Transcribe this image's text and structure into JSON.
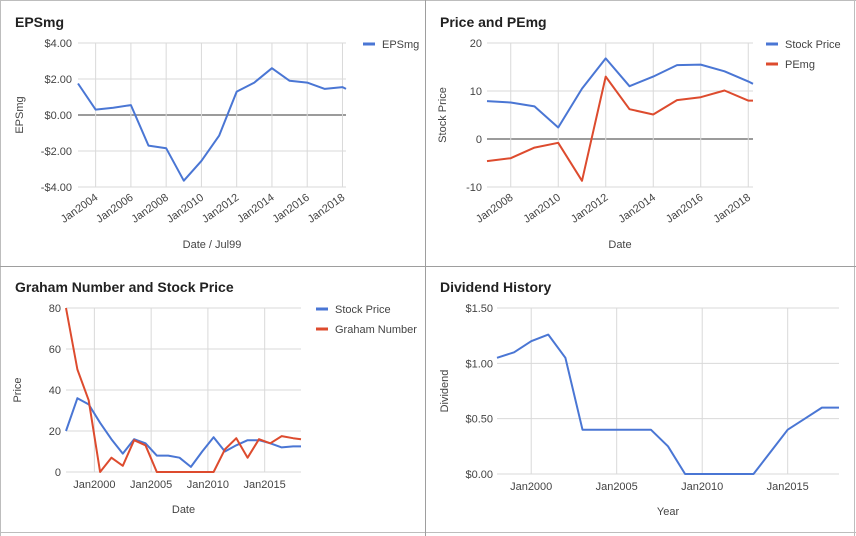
{
  "chart_data": [
    {
      "type": "line",
      "title": "EPSmg",
      "xlabel": "Date / Jul99",
      "ylabel": "EPSmg",
      "ylim": [
        -4,
        4
      ],
      "yticks": [
        4,
        2,
        0,
        -2,
        -4
      ],
      "ytick_labels": [
        "$4.00",
        "$2.00",
        "$0.00",
        "-$2.00",
        "-$4.00"
      ],
      "xlim": [
        2003,
        2018.2
      ],
      "xticks": [
        2004,
        2006,
        2008,
        2010,
        2012,
        2014,
        2016,
        2018
      ],
      "xtick_labels": [
        "Jan2004",
        "Jan2006",
        "Jan2008",
        "Jan2010",
        "Jan2012",
        "Jan2014",
        "Jan2016",
        "Jan2018"
      ],
      "legend": "top-right",
      "series": [
        {
          "name": "EPSmg",
          "color": "#4a76d4",
          "x": [
            2003,
            2004,
            2005,
            2006,
            2007,
            2008,
            2009,
            2010,
            2011,
            2012,
            2013,
            2014,
            2015,
            2016,
            2017,
            2018,
            2018.2
          ],
          "y": [
            1.75,
            0.3,
            0.4,
            0.55,
            -1.7,
            -1.85,
            -3.65,
            -2.55,
            -1.15,
            1.3,
            1.8,
            2.6,
            1.9,
            1.8,
            1.45,
            1.55,
            1.45
          ]
        }
      ]
    },
    {
      "type": "line",
      "title": "Price and PEmg",
      "xlabel": "Date",
      "ylabel": "Stock Price",
      "ylim": [
        -10,
        20
      ],
      "yticks": [
        20,
        10,
        0,
        -10
      ],
      "ytick_labels": [
        "20",
        "10",
        "0",
        "-10"
      ],
      "xlim": [
        2007,
        2018.2
      ],
      "xticks": [
        2008,
        2010,
        2012,
        2014,
        2016,
        2018
      ],
      "xtick_labels": [
        "Jan2008",
        "Jan2010",
        "Jan2012",
        "Jan2014",
        "Jan2016",
        "Jan2018"
      ],
      "legend": "top-right",
      "series": [
        {
          "name": "Stock Price",
          "color": "#4a76d4",
          "x": [
            2007,
            2008,
            2009,
            2010,
            2011,
            2012,
            2013,
            2014,
            2015,
            2016,
            2017,
            2018,
            2018.2
          ],
          "y": [
            7.9,
            7.6,
            6.8,
            2.4,
            10.5,
            16.8,
            11.0,
            13.0,
            15.4,
            15.5,
            14.1,
            12.0,
            11.5
          ]
        },
        {
          "name": "PEmg",
          "color": "#dd4b2e",
          "x": [
            2007,
            2008,
            2009,
            2010,
            2011,
            2012,
            2013,
            2014,
            2015,
            2016,
            2017,
            2018,
            2018.2
          ],
          "y": [
            -4.6,
            -4.0,
            -1.8,
            -0.8,
            -8.7,
            13.0,
            6.2,
            5.1,
            8.1,
            8.7,
            10.1,
            8.0,
            8.0
          ]
        }
      ]
    },
    {
      "type": "line",
      "title": "Graham Number and Stock Price",
      "xlabel": "Date",
      "ylabel": "Price",
      "ylim": [
        0,
        80
      ],
      "yticks": [
        80,
        60,
        40,
        20,
        0
      ],
      "ytick_labels": [
        "80",
        "60",
        "40",
        "20",
        "0"
      ],
      "xlim": [
        1997.5,
        2018.2
      ],
      "xticks": [
        2000,
        2005,
        2010,
        2015
      ],
      "xtick_labels": [
        "Jan2000",
        "Jan2005",
        "Jan2010",
        "Jan2015"
      ],
      "legend": "top-right",
      "series": [
        {
          "name": "Stock Price",
          "color": "#4a76d4",
          "x": [
            1997.5,
            1998.5,
            1999.5,
            2000.5,
            2001.5,
            2002.5,
            2003.5,
            2004.5,
            2005.5,
            2006.5,
            2007.5,
            2008.5,
            2009.5,
            2010.5,
            2011.5,
            2012.5,
            2013.5,
            2014.5,
            2015.5,
            2016.5,
            2017.5,
            2018.2
          ],
          "y": [
            20,
            36,
            33,
            24,
            16,
            9,
            16,
            14,
            8,
            8,
            7,
            2.5,
            10,
            17,
            10,
            13,
            15.5,
            15.5,
            14,
            12,
            12.5,
            12.5
          ]
        },
        {
          "name": "Graham Number",
          "color": "#dd4b2e",
          "x": [
            1997.5,
            1998.5,
            1999.5,
            2000.5,
            2001.5,
            2002.5,
            2003.5,
            2004.5,
            2005.5,
            2006.5,
            2007.5,
            2008.5,
            2009.5,
            2010.5,
            2011.5,
            2012.5,
            2013.5,
            2014.5,
            2015.5,
            2016.5,
            2017.5,
            2018.2
          ],
          "y": [
            80,
            50,
            35,
            0,
            7,
            3,
            15.5,
            13,
            0,
            0,
            0,
            0,
            0,
            0,
            11,
            16.5,
            7,
            16,
            14,
            17.5,
            16.5,
            16
          ]
        }
      ]
    },
    {
      "type": "line",
      "title": "Dividend History",
      "xlabel": "Year",
      "ylabel": "Dividend",
      "ylim": [
        0,
        1.5
      ],
      "yticks": [
        1.5,
        1.0,
        0.5,
        0.0
      ],
      "ytick_labels": [
        "$1.50",
        "$1.00",
        "$0.50",
        "$0.00"
      ],
      "xlim": [
        1998,
        2018
      ],
      "xticks": [
        2000,
        2005,
        2010,
        2015
      ],
      "xtick_labels": [
        "Jan2000",
        "Jan2005",
        "Jan2010",
        "Jan2015"
      ],
      "series": [
        {
          "name": "Dividend",
          "color": "#4a76d4",
          "x": [
            1998,
            1999,
            2000,
            2001,
            2002,
            2003,
            2004,
            2005,
            2006,
            2007,
            2008,
            2009,
            2010,
            2011,
            2012,
            2013,
            2014,
            2015,
            2016,
            2017,
            2018
          ],
          "y": [
            1.05,
            1.1,
            1.2,
            1.26,
            1.05,
            0.4,
            0.4,
            0.4,
            0.4,
            0.4,
            0.25,
            0.0,
            0.0,
            0.0,
            0.0,
            0.0,
            0.2,
            0.4,
            0.5,
            0.6,
            0.6
          ]
        }
      ]
    }
  ]
}
